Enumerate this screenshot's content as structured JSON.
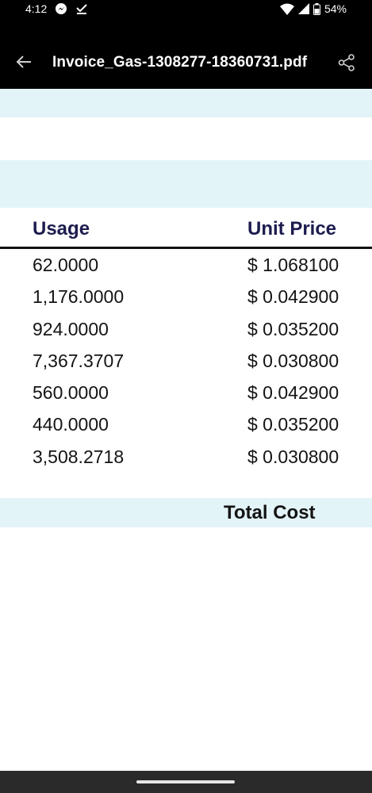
{
  "status_bar": {
    "time": "4:12",
    "battery": "54%",
    "icons": [
      "messenger-icon",
      "check-icon",
      "wifi-icon",
      "signal-icon",
      "battery-icon"
    ]
  },
  "app_bar": {
    "title": "Invoice_Gas-1308277-18360731.pdf",
    "back_icon": "arrow-left-icon",
    "share_icon": "share-icon"
  },
  "table": {
    "headers": {
      "usage": "Usage",
      "unit_price": "Unit Price"
    },
    "rows": [
      {
        "usage": "62.0000",
        "unit_price": "$ 1.068100"
      },
      {
        "usage": "1,176.0000",
        "unit_price": "$ 0.042900"
      },
      {
        "usage": "924.0000",
        "unit_price": "$ 0.035200"
      },
      {
        "usage": "7,367.3707",
        "unit_price": "$ 0.030800"
      },
      {
        "usage": "560.0000",
        "unit_price": "$ 0.042900"
      },
      {
        "usage": "440.0000",
        "unit_price": "$ 0.035200"
      },
      {
        "usage": "3,508.2718",
        "unit_price": "$ 0.030800"
      }
    ],
    "total_label": "Total Cost"
  },
  "colors": {
    "band": "#e3f4f8",
    "header_text": "#1c1c4e",
    "bar_background": "#000000"
  }
}
